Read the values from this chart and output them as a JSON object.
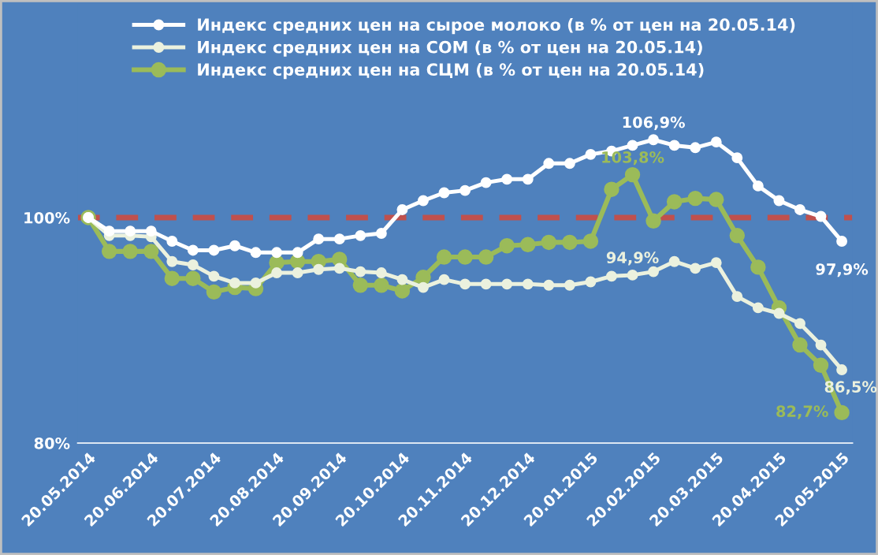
{
  "chart_data": {
    "type": "line",
    "categories": [
      "20.05.2014",
      null,
      null,
      "20.06.2014",
      null,
      null,
      "20.07.2014",
      null,
      null,
      "20.08.2014",
      null,
      null,
      "20.09.2014",
      null,
      null,
      "20.10.2014",
      null,
      null,
      "20.11.2014",
      null,
      null,
      "20.12.2014",
      null,
      null,
      "20.01.2015",
      null,
      null,
      "20.02.2015",
      null,
      null,
      "20.03.2015",
      null,
      null,
      "20.04.2015",
      null,
      null,
      "20.05.2015"
    ],
    "series": [
      {
        "name": "Индекс средних цен на сырое молоко (в % от цен на 20.05.14)",
        "color": "#ffffff",
        "values": [
          100,
          98.8,
          98.8,
          98.8,
          97.9,
          97.1,
          97.1,
          97.5,
          96.9,
          96.9,
          96.9,
          98.1,
          98.1,
          98.4,
          98.6,
          100.7,
          101.5,
          102.2,
          102.4,
          103.1,
          103.4,
          103.4,
          104.8,
          104.8,
          105.6,
          105.9,
          106.4,
          106.9,
          106.4,
          106.2,
          106.7,
          105.3,
          102.8,
          101.5,
          100.7,
          100.1,
          97.9
        ],
        "value_labels": [
          null,
          null,
          null,
          null,
          null,
          null,
          null,
          null,
          null,
          null,
          null,
          null,
          null,
          null,
          null,
          null,
          null,
          null,
          null,
          null,
          null,
          null,
          null,
          null,
          null,
          null,
          null,
          "106,9%",
          null,
          null,
          null,
          null,
          null,
          null,
          null,
          null,
          "97,9%"
        ]
      },
      {
        "name": "Индекс средних цен на СОМ (в % от цен на 20.05.14)",
        "color": "#ebf1de",
        "values": [
          100,
          98.4,
          98.4,
          98.3,
          96.1,
          95.8,
          94.8,
          94.2,
          94.2,
          95.1,
          95.1,
          95.4,
          95.5,
          95.2,
          95.1,
          94.5,
          93.8,
          94.5,
          94.1,
          94.1,
          94.1,
          94.1,
          94.0,
          94.0,
          94.3,
          94.8,
          94.9,
          95.2,
          96.1,
          95.5,
          96.0,
          93.0,
          92.0,
          91.5,
          90.6,
          88.7,
          86.5
        ],
        "value_labels": [
          null,
          null,
          null,
          null,
          null,
          null,
          null,
          null,
          null,
          null,
          null,
          null,
          null,
          null,
          null,
          null,
          null,
          null,
          null,
          null,
          null,
          null,
          null,
          null,
          null,
          null,
          "94,9%",
          null,
          null,
          null,
          null,
          null,
          null,
          null,
          null,
          null,
          "86,5%"
        ]
      },
      {
        "name": "Индекс средних цен на СЦМ (в % от цен на 20.05.14)",
        "color": "#9bbb59",
        "values": [
          100,
          97.0,
          97.0,
          97.0,
          94.6,
          94.6,
          93.4,
          93.8,
          93.7,
          96.0,
          96.1,
          96.1,
          96.3,
          94.0,
          94.0,
          93.5,
          94.7,
          96.5,
          96.5,
          96.5,
          97.5,
          97.6,
          97.8,
          97.8,
          97.9,
          102.5,
          103.8,
          99.7,
          101.4,
          101.7,
          101.6,
          98.4,
          95.6,
          92.0,
          88.7,
          86.9,
          82.7
        ],
        "value_labels": [
          null,
          null,
          null,
          null,
          null,
          null,
          null,
          null,
          null,
          null,
          null,
          null,
          null,
          null,
          null,
          null,
          null,
          null,
          null,
          null,
          null,
          null,
          null,
          null,
          null,
          null,
          "103,8%",
          null,
          null,
          null,
          null,
          null,
          null,
          null,
          null,
          null,
          "82,7%"
        ]
      }
    ],
    "ylim": [
      80,
      119
    ],
    "yticks": [
      {
        "value": 80,
        "label": "80%"
      },
      {
        "value": 100,
        "label": "100%"
      }
    ],
    "ref_lines": [
      {
        "axis": "y",
        "value": 100,
        "color": "#c0504d",
        "line_style": "dashed"
      }
    ],
    "grid": false,
    "legend": "top",
    "marker": "circle"
  }
}
